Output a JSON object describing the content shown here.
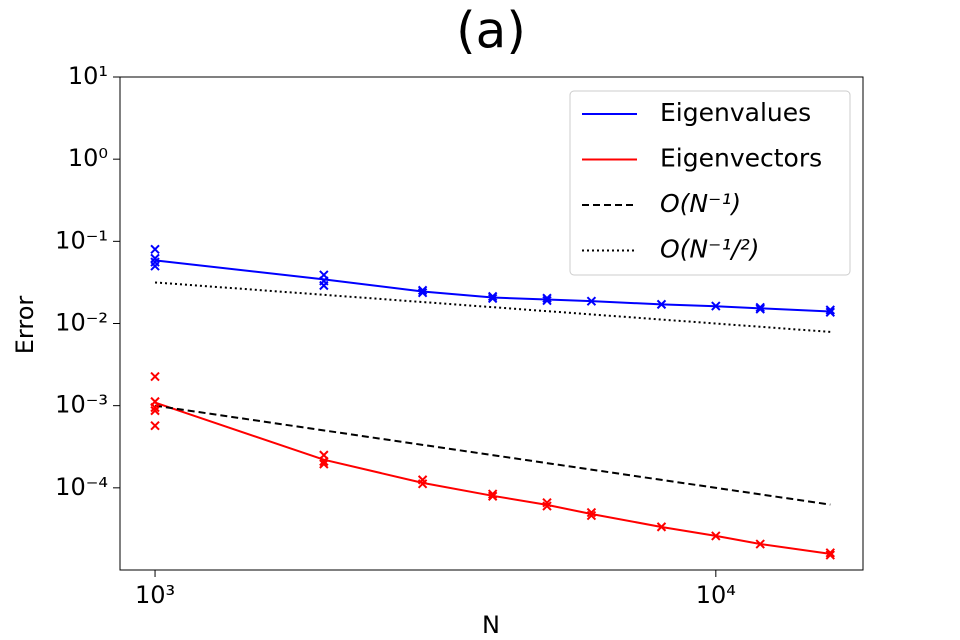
{
  "chart_data": {
    "type": "line",
    "title": "(a)",
    "x_label": "N",
    "y_label": "Error",
    "x_scale": "log",
    "y_scale": "log",
    "xlim": [
      866,
      18300
    ],
    "ylim": [
      1e-05,
      10
    ],
    "xticks": [
      {
        "value": 1000,
        "label": "10³"
      },
      {
        "value": 10000,
        "label": "10⁴"
      }
    ],
    "yticks": [
      {
        "value": 0.0001,
        "label": "10⁻⁴"
      },
      {
        "value": 0.001,
        "label": "10⁻³"
      },
      {
        "value": 0.01,
        "label": "10⁻²"
      },
      {
        "value": 0.1,
        "label": "10⁻¹"
      },
      {
        "value": 1,
        "label": "10⁰"
      },
      {
        "value": 10,
        "label": "10¹"
      }
    ],
    "legend": "upper right",
    "series": [
      {
        "name": "Eigenvalues",
        "color": "#0000ff",
        "style": "solid",
        "x": [
          1000,
          2000,
          3000,
          4000,
          5000,
          6000,
          8000,
          10000,
          12000,
          16000
        ],
        "values": [
          0.0586,
          0.0344,
          0.0245,
          0.0207,
          0.0196,
          0.0187,
          0.0171,
          0.0162,
          0.0153,
          0.014
        ]
      },
      {
        "name": "Eigenvectors",
        "color": "#ff0000",
        "style": "solid",
        "x": [
          1000,
          2000,
          3000,
          4000,
          5000,
          6000,
          8000,
          10000,
          12000,
          16000
        ],
        "values": [
          0.00109,
          0.00022,
          0.000115,
          8e-05,
          6.2e-05,
          4.8e-05,
          3.34e-05,
          2.6e-05,
          2.07e-05,
          1.57e-05
        ]
      },
      {
        "name": "O(N⁻¹)",
        "color": "#000000",
        "style": "dashed",
        "x": [
          1000,
          16000
        ],
        "values": [
          0.001,
          6.25e-05
        ]
      },
      {
        "name": "O(N⁻¹/²)",
        "color": "#000000",
        "style": "dotted",
        "x": [
          1000,
          16000
        ],
        "values": [
          0.0316,
          0.0079
        ]
      },
      {
        "color": "#0000ff",
        "style": "marker",
        "x": [
          1000,
          1000,
          1000,
          1000,
          2000,
          2000,
          2000,
          3000,
          3000,
          4000,
          4000,
          5000,
          5000,
          6000,
          8000,
          10000,
          12000,
          12000,
          16000,
          16000
        ],
        "values": [
          0.08,
          0.062,
          0.056,
          0.05,
          0.039,
          0.033,
          0.029,
          0.0253,
          0.0237,
          0.0213,
          0.0202,
          0.0203,
          0.019,
          0.0187,
          0.0171,
          0.0163,
          0.0157,
          0.015,
          0.0146,
          0.0137
        ]
      },
      {
        "color": "#ff0000",
        "style": "marker",
        "x": [
          1000,
          1000,
          1000,
          1000,
          1000,
          2000,
          2000,
          2000,
          3000,
          3000,
          4000,
          4000,
          5000,
          5000,
          6000,
          6000,
          8000,
          10000,
          12000,
          16000,
          16000
        ],
        "values": [
          0.00226,
          0.00112,
          0.00095,
          0.00087,
          0.00057,
          0.00025,
          0.00021,
          0.000195,
          0.000125,
          0.000112,
          8.4e-05,
          7.9e-05,
          6.6e-05,
          6e-05,
          5e-05,
          4.6e-05,
          3.35e-05,
          2.6e-05,
          2.07e-05,
          1.62e-05,
          1.52e-05
        ]
      }
    ]
  }
}
